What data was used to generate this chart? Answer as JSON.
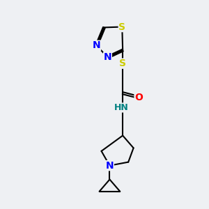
{
  "background_color": "#eef0f3",
  "bond_color": "#000000",
  "atom_colors": {
    "S": "#cccc00",
    "N": "#0000ff",
    "O": "#ff0000",
    "H": "#008080",
    "C": "#000000"
  },
  "font_size": 9,
  "fig_size": [
    3.0,
    3.0
  ],
  "dpi": 100
}
